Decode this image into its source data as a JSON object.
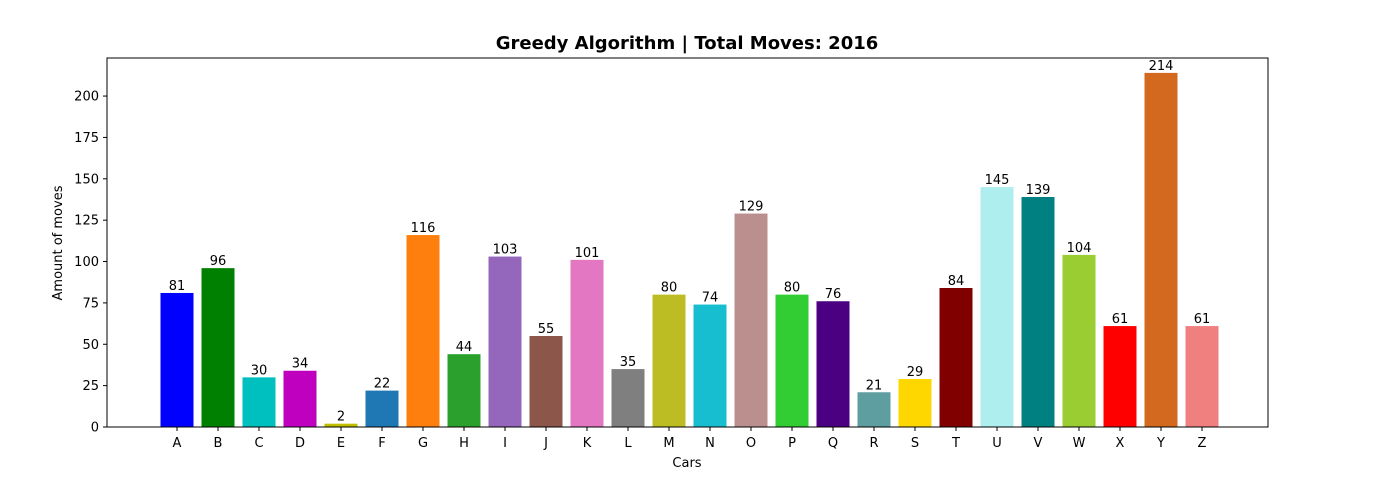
{
  "chart_data": {
    "type": "bar",
    "title": "Greedy Algorithm | Total Moves: 2016",
    "xlabel": "Cars",
    "ylabel": "Amount of moves",
    "ylim": [
      0,
      223
    ],
    "yticks": [
      0,
      25,
      50,
      75,
      100,
      125,
      150,
      175,
      200
    ],
    "grid": false,
    "categories": [
      "A",
      "B",
      "C",
      "D",
      "E",
      "F",
      "G",
      "H",
      "I",
      "J",
      "K",
      "L",
      "M",
      "N",
      "O",
      "P",
      "Q",
      "R",
      "S",
      "T",
      "U",
      "V",
      "W",
      "X",
      "Y",
      "Z"
    ],
    "values": [
      81,
      96,
      30,
      34,
      2,
      22,
      116,
      44,
      103,
      55,
      101,
      35,
      80,
      74,
      129,
      80,
      76,
      21,
      29,
      84,
      145,
      139,
      104,
      61,
      214,
      61
    ],
    "colors": [
      "#0000ff",
      "#008000",
      "#00bfbf",
      "#bf00bf",
      "#bfbf00",
      "#1f77b4",
      "#ff7f0e",
      "#2ca02c",
      "#9467bd",
      "#8c564b",
      "#e377c2",
      "#7f7f7f",
      "#bcbd22",
      "#17becf",
      "#bc8f8f",
      "#32cd32",
      "#4b0082",
      "#5f9ea0",
      "#ffd700",
      "#800000",
      "#afeeee",
      "#008080",
      "#9acd32",
      "#ff0000",
      "#d2691e",
      "#f08080"
    ]
  }
}
